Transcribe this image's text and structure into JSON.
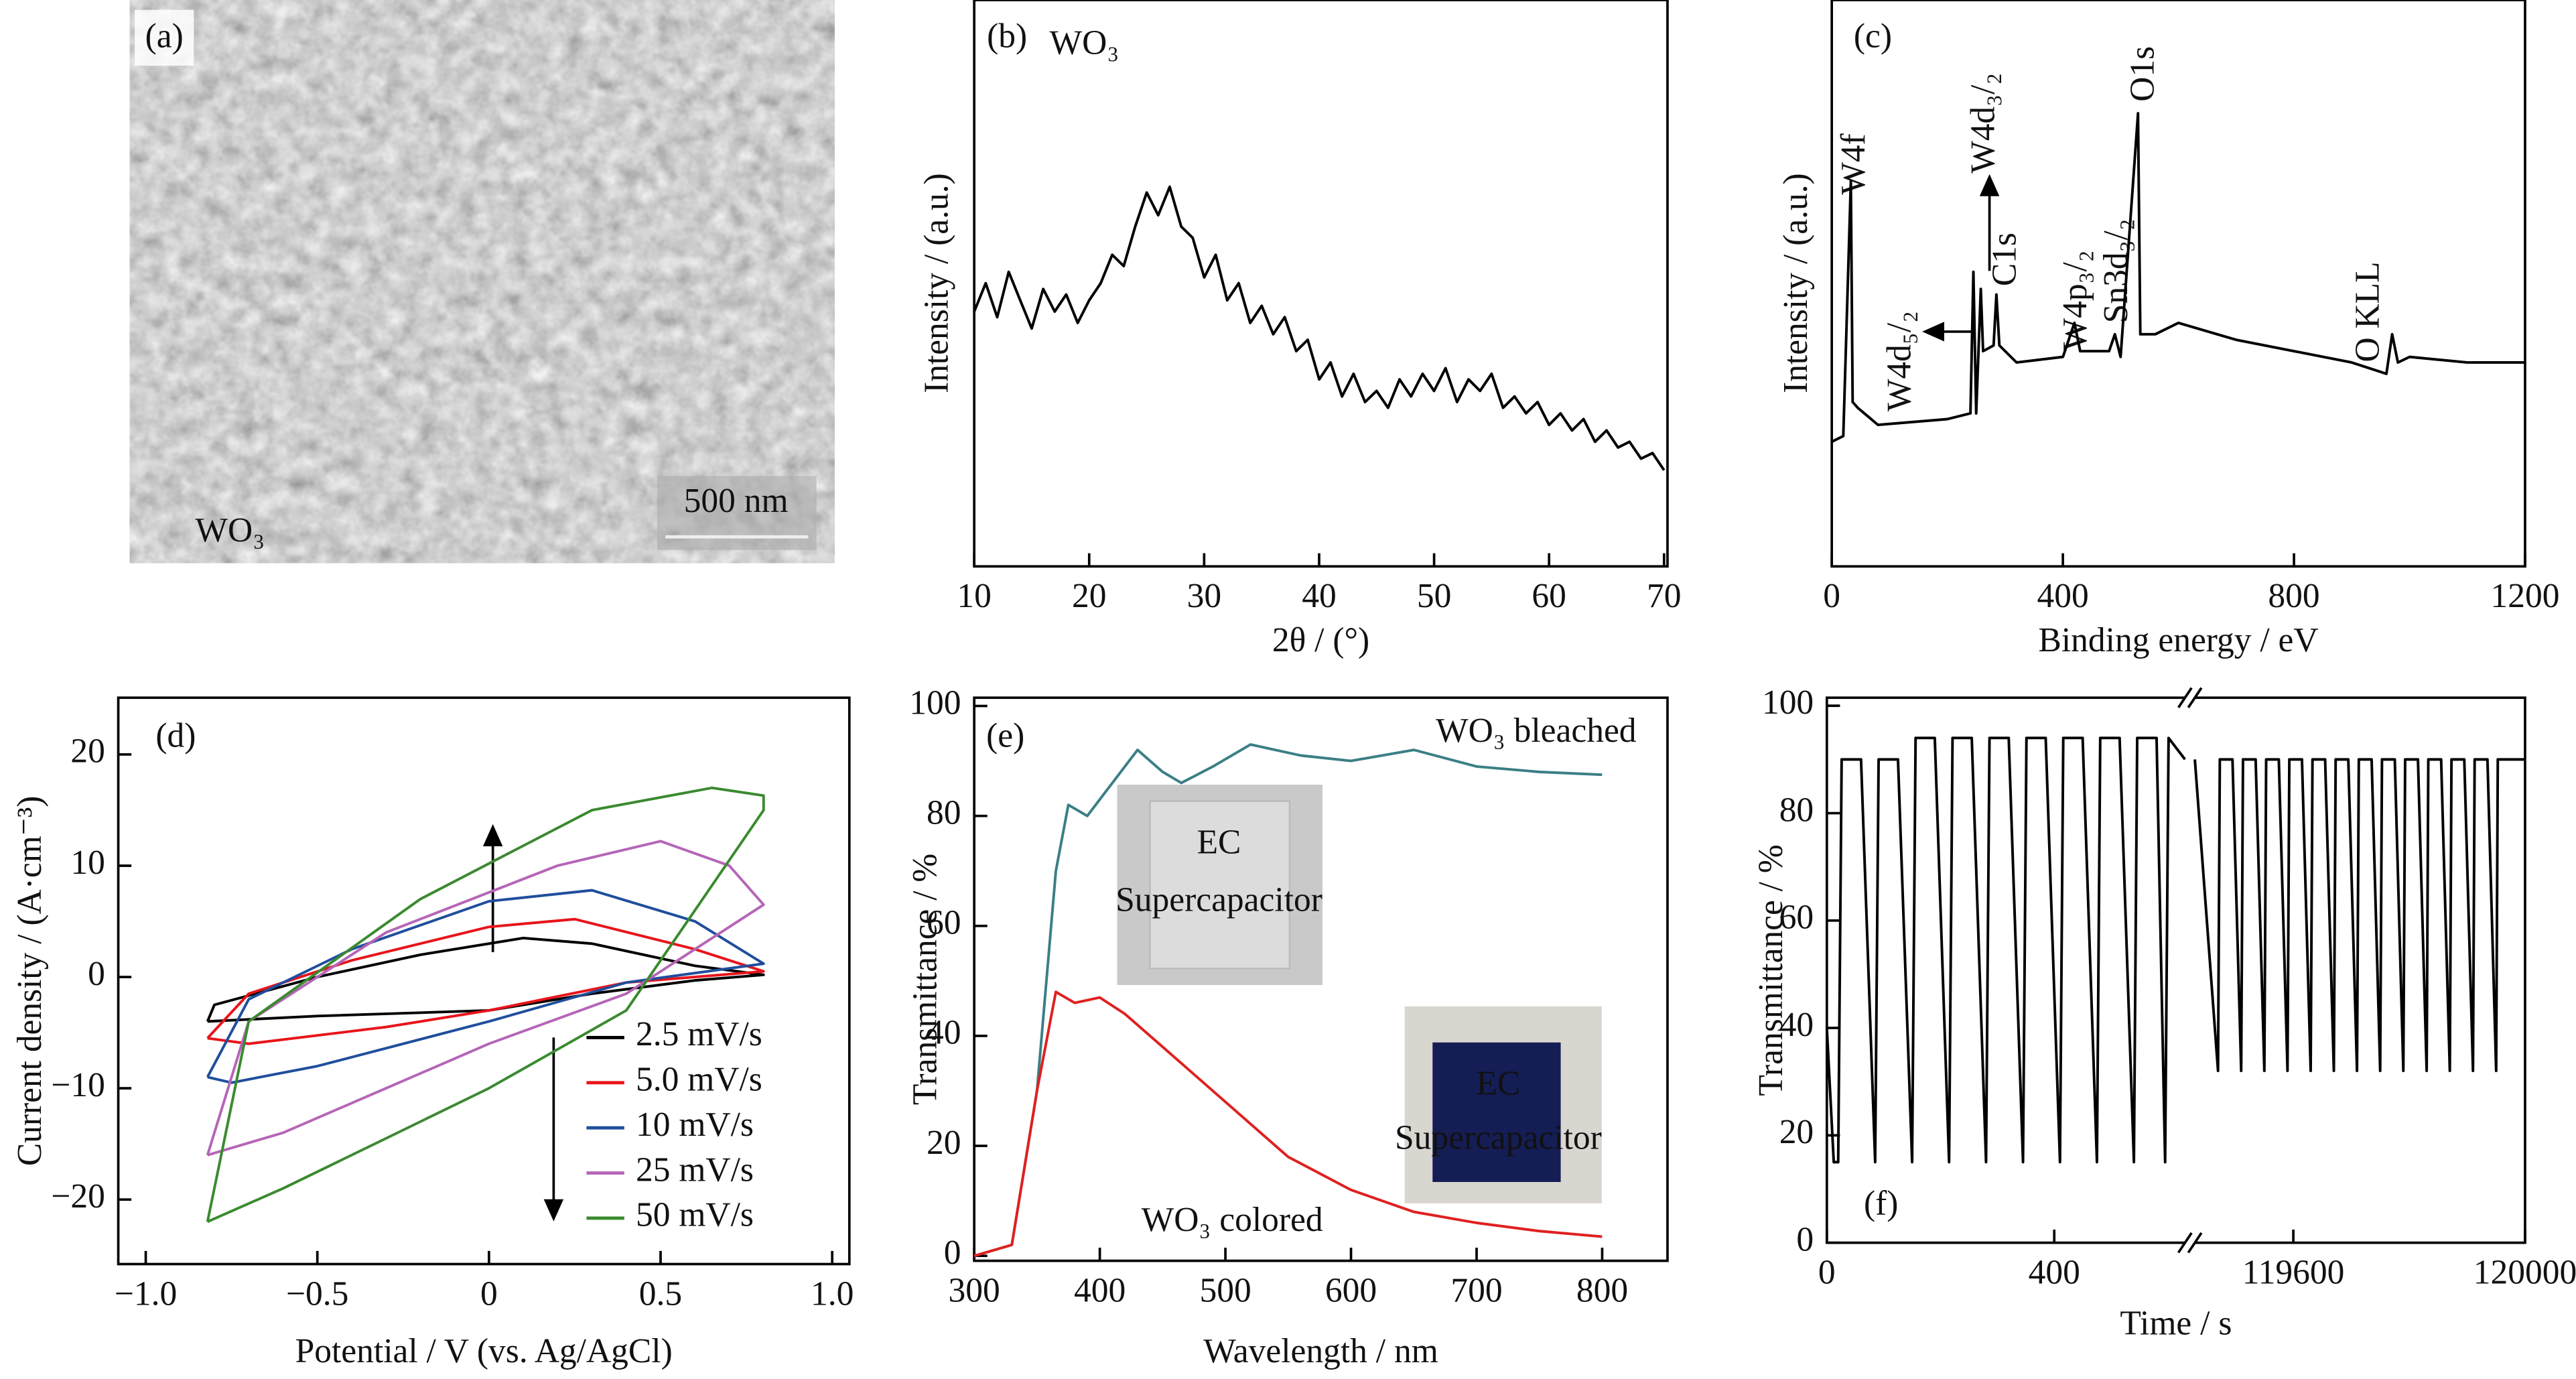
{
  "chart_data": [
    {
      "type": "image",
      "panel_label": "(a)",
      "annotations": [
        "WO₃",
        "500 nm"
      ]
    },
    {
      "type": "line",
      "panel_label": "(b)",
      "annotations": [
        "WO₃"
      ],
      "x_label": "2θ / (°)",
      "y_label": "Intensity / (a.u.)",
      "x": [
        10,
        11,
        12,
        13,
        14,
        15,
        16,
        17,
        18,
        19,
        20,
        21,
        22,
        23,
        24,
        25,
        26,
        27,
        28,
        29,
        30,
        31,
        32,
        33,
        34,
        35,
        36,
        37,
        38,
        39,
        40,
        41,
        42,
        43,
        44,
        45,
        46,
        47,
        48,
        49,
        50,
        51,
        52,
        53,
        54,
        55,
        56,
        57,
        58,
        59,
        60,
        61,
        62,
        63,
        64,
        65,
        66,
        67,
        68,
        69,
        70
      ],
      "values": [
        45,
        50,
        44,
        52,
        47,
        42,
        49,
        45,
        48,
        43,
        47,
        50,
        55,
        53,
        60,
        66,
        62,
        67,
        60,
        58,
        51,
        55,
        47,
        50,
        43,
        46,
        41,
        44,
        38,
        40,
        33,
        36,
        30,
        34,
        29,
        31,
        28,
        33,
        30,
        34,
        31,
        35,
        29,
        33,
        31,
        34,
        28,
        30,
        27,
        29,
        25,
        27,
        24,
        26,
        22,
        24,
        21,
        22,
        19,
        20,
        17
      ],
      "color": "#000000",
      "xlim": [
        10,
        70.3
      ],
      "ylim": [
        0,
        100
      ],
      "xticks": [
        10,
        20,
        30,
        40,
        50,
        60,
        70
      ]
    },
    {
      "type": "line",
      "panel_label": "(c)",
      "annotations": [
        "W4f",
        "W4d₃/₂",
        "C1s",
        "O1s",
        "W4d₅/₂",
        "W4p₃/₂",
        "Sn3d₃/₂",
        "O KLL"
      ],
      "x_label": "Binding energy / eV",
      "y_label": "Intensity / (a.u.)",
      "x": [
        0,
        20,
        33,
        36,
        45,
        80,
        200,
        240,
        245,
        250,
        258,
        262,
        280,
        285,
        290,
        320,
        400,
        420,
        430,
        480,
        490,
        500,
        530,
        534,
        560,
        600,
        700,
        800,
        900,
        960,
        970,
        980,
        1000,
        1100,
        1200
      ],
      "values": [
        22,
        23,
        68,
        29,
        28,
        25,
        26,
        27,
        52,
        27,
        49,
        38,
        39,
        48,
        39,
        36,
        37,
        43,
        38,
        38,
        41,
        37,
        80,
        41,
        41,
        43,
        40,
        38,
        36,
        34,
        41,
        36,
        37,
        36,
        36
      ],
      "color": "#000000",
      "xlim": [
        0,
        1200
      ],
      "ylim": [
        0,
        100
      ],
      "xticks": [
        0,
        400,
        800,
        1200
      ]
    },
    {
      "type": "line",
      "panel_label": "(d)",
      "x_label": "Potential / V (vs. Ag/AgCl)",
      "y_label": "Current density / (A·cm⁻³)",
      "xlim": [
        -1.08,
        1.05
      ],
      "ylim": [
        -25.8,
        25.1
      ],
      "xticks": [
        {
          "value": -1,
          "label": "−1.0"
        },
        {
          "value": -0.5,
          "label": "−0.5"
        },
        0,
        0.5,
        {
          "value": 1,
          "label": "1.0"
        }
      ],
      "yticks": [
        {
          "value": -20,
          "label": "−20"
        },
        {
          "value": -10,
          "label": "−10"
        },
        0,
        10,
        20
      ],
      "series": [
        {
          "name": "2.5 mV/s",
          "color": "#000000",
          "x": [
            -0.82,
            -0.5,
            0,
            0.3,
            0.6,
            0.8,
            0.6,
            0.3,
            0.1,
            -0.2,
            -0.5,
            -0.8,
            -0.82
          ],
          "values": [
            -4,
            -3.5,
            -3,
            -1.5,
            -0.3,
            0.2,
            1,
            3,
            3.5,
            2,
            0,
            -2.5,
            -4
          ]
        },
        {
          "name": "5.0 mV/s",
          "color": "#e8141b",
          "x": [
            -0.82,
            -0.7,
            -0.3,
            0,
            0.4,
            0.8,
            0.6,
            0.25,
            0,
            -0.4,
            -0.7,
            -0.82
          ],
          "values": [
            -5.5,
            -6,
            -4.5,
            -3,
            -0.5,
            0.5,
            2.5,
            5.2,
            4.5,
            1.5,
            -1.5,
            -5.5
          ]
        },
        {
          "name": "10 mV/s",
          "color": "#1f4e9c",
          "x": [
            -0.82,
            -0.75,
            -0.5,
            0,
            0.4,
            0.8,
            0.6,
            0.3,
            0,
            -0.4,
            -0.7,
            -0.82
          ],
          "values": [
            -9,
            -9.5,
            -8,
            -4,
            -0.5,
            1.2,
            5,
            7.8,
            6.8,
            2.5,
            -2,
            -9
          ]
        },
        {
          "name": "25 mV/s",
          "color": "#b565b7",
          "x": [
            -0.82,
            -0.6,
            -0.3,
            0,
            0.4,
            0.8,
            0.7,
            0.5,
            0.2,
            -0.3,
            -0.7,
            -0.82
          ],
          "values": [
            -16,
            -14,
            -10,
            -6,
            -1.5,
            6.5,
            10,
            12.2,
            10,
            4,
            -4,
            -16
          ]
        },
        {
          "name": "50 mV/s",
          "color": "#3a8a2f",
          "x": [
            -0.82,
            -0.6,
            -0.3,
            0,
            0.4,
            0.8,
            0.8,
            0.65,
            0.3,
            -0.2,
            -0.7,
            -0.82
          ],
          "values": [
            -22,
            -19,
            -14.5,
            -10,
            -3,
            15,
            16.3,
            17,
            15,
            7,
            -4,
            -22
          ]
        }
      ]
    },
    {
      "type": "line",
      "panel_label": "(e)",
      "annotations": [
        "WO₃ bleached",
        "WO₃ colored"
      ],
      "insets": [
        [
          "EC",
          "Supercapacitor"
        ],
        [
          "EC",
          "Supercapacitor"
        ]
      ],
      "x_label": "Wavelength / nm",
      "y_label": "Transmittance / %",
      "xlim": [
        300,
        852
      ],
      "ylim": [
        -0.9,
        101.5
      ],
      "xticks": [
        300,
        400,
        500,
        600,
        700,
        800
      ],
      "yticks": [
        0,
        20,
        40,
        60,
        80,
        100
      ],
      "series": [
        {
          "color": "#3a7f85",
          "x": [
            300,
            330,
            350,
            365,
            375,
            390,
            410,
            430,
            450,
            465,
            490,
            520,
            560,
            600,
            650,
            700,
            750,
            800
          ],
          "values": [
            0,
            2,
            30,
            70,
            82,
            80,
            86,
            92,
            88,
            86,
            89,
            93,
            91,
            90,
            92,
            89,
            88,
            87.5
          ]
        },
        {
          "color": "#e02020",
          "x": [
            300,
            330,
            350,
            365,
            380,
            400,
            420,
            450,
            500,
            550,
            600,
            650,
            700,
            750,
            800
          ],
          "values": [
            0,
            2,
            30,
            48,
            46,
            47,
            44,
            38,
            28,
            18,
            12,
            8,
            6,
            4.5,
            3.5
          ]
        }
      ]
    },
    {
      "type": "line",
      "panel_label": "(f)",
      "x_label": "Time / s",
      "y_label": "Transmittance / %",
      "xlim": [
        0,
        120000
      ],
      "xbreak": [
        630,
        119430
      ],
      "ylim": [
        0,
        101.5
      ],
      "xticks": [
        0,
        400,
        119600,
        120000
      ],
      "yticks": [
        0,
        20,
        40,
        60,
        80,
        100
      ],
      "series": [
        {
          "color": "#000000",
          "x": [
            0,
            12,
            20,
            26,
            60,
            85,
            91,
            125,
            150,
            156,
            190,
            215,
            221,
            255,
            280,
            286,
            320,
            345,
            351,
            385,
            410,
            416,
            450,
            475,
            481,
            515,
            540,
            546,
            580,
            595,
            601,
            630
          ],
          "values": [
            40,
            15,
            15,
            90,
            90,
            15,
            90,
            90,
            15,
            94,
            94,
            15,
            94,
            94,
            15,
            94,
            94,
            15,
            94,
            94,
            15,
            94,
            94,
            15,
            94,
            94,
            15,
            94,
            94,
            15,
            94,
            90
          ]
        },
        {
          "color": "#000000",
          "x": [
            119430,
            119470,
            119473,
            119495,
            119510,
            119513,
            119535,
            119550,
            119553,
            119575,
            119590,
            119593,
            119615,
            119630,
            119633,
            119655,
            119670,
            119673,
            119695,
            119710,
            119713,
            119735,
            119750,
            119753,
            119775,
            119790,
            119793,
            119815,
            119830,
            119833,
            119855,
            119870,
            119873,
            119895,
            119910,
            119913,
            119935,
            119950,
            119953,
            119975,
            120000
          ],
          "values": [
            90,
            32,
            90,
            90,
            32,
            90,
            90,
            32,
            90,
            90,
            32,
            90,
            90,
            32,
            90,
            90,
            32,
            90,
            90,
            32,
            90,
            90,
            32,
            90,
            90,
            32,
            90,
            90,
            32,
            90,
            90,
            32,
            90,
            90,
            32,
            90,
            90,
            32,
            90,
            90,
            90
          ]
        }
      ]
    }
  ]
}
